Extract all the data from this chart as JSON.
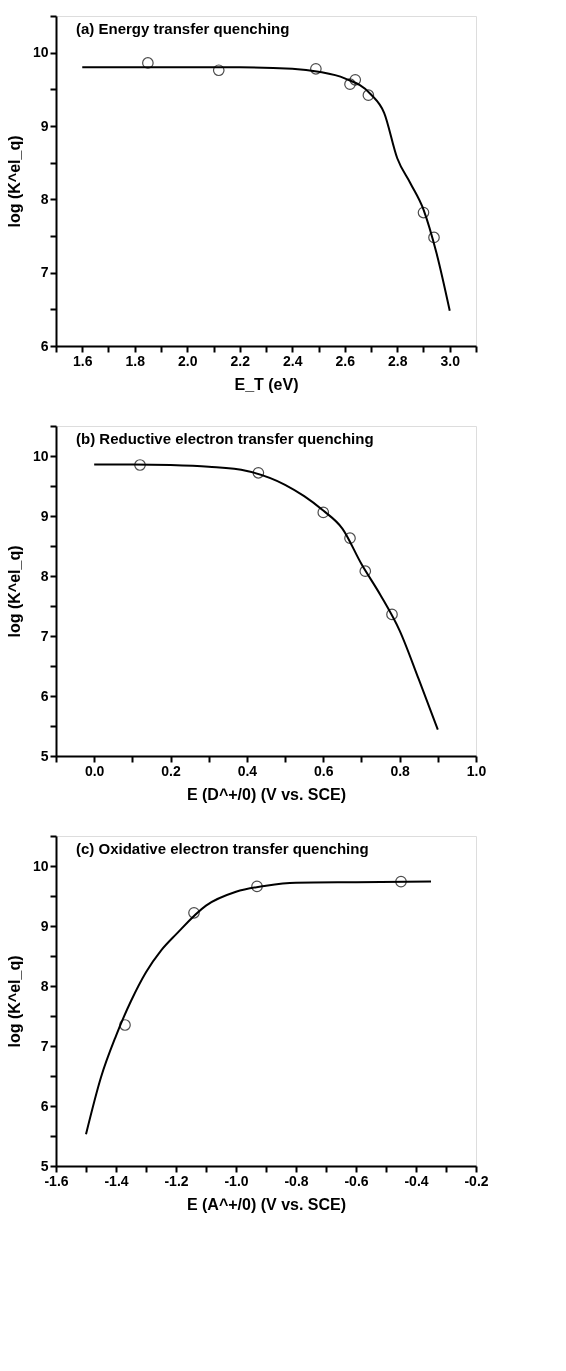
{
  "chart_data": [
    {
      "type": "scatter",
      "title": "(a) Energy transfer quenching",
      "xlabel": "E_T (eV)",
      "ylabel": "log (K^el_q)",
      "xlim": [
        1.5,
        3.1
      ],
      "ylim": [
        6,
        10.5
      ],
      "xticks": [
        {
          "value": 1.5,
          "label": null
        },
        1.6,
        {
          "value": 1.7,
          "label": null
        },
        1.8,
        {
          "value": 1.9,
          "label": null
        },
        {
          "value": 2,
          "label": "2.0"
        },
        {
          "value": 2.1,
          "label": null
        },
        2.2,
        {
          "value": 2.3,
          "label": null
        },
        2.4,
        {
          "value": 2.5,
          "label": null
        },
        2.6,
        {
          "value": 2.7,
          "label": null
        },
        2.8,
        {
          "value": 2.9,
          "label": null
        },
        {
          "value": 3,
          "label": "3.0"
        },
        {
          "value": 3.1,
          "label": null
        }
      ],
      "yticks": [
        6,
        {
          "value": 6.5,
          "label": null
        },
        7,
        {
          "value": 7.5,
          "label": null
        },
        8,
        {
          "value": 8.5,
          "label": null
        },
        9,
        {
          "value": 9.5,
          "label": null
        },
        10,
        {
          "value": 10.5,
          "label": null
        }
      ],
      "series": [
        {
          "marker": "circle",
          "color": "#000000",
          "x": [
            1.85,
            2.12,
            2.49,
            2.62,
            2.64,
            2.69,
            2.9,
            2.94
          ],
          "values": [
            9.86,
            9.76,
            9.78,
            9.57,
            9.63,
            9.42,
            7.82,
            7.48
          ]
        },
        {
          "type": "line",
          "color": "#000000",
          "x": [
            1.6,
            1.8,
            2.0,
            2.2,
            2.4,
            2.5,
            2.6,
            2.7,
            2.75,
            2.8,
            2.85,
            2.9,
            2.95,
            3.0
          ],
          "values": [
            9.8,
            9.8,
            9.8,
            9.8,
            9.78,
            9.74,
            9.65,
            9.43,
            9.18,
            8.56,
            8.22,
            7.86,
            7.26,
            6.48
          ]
        }
      ]
    },
    {
      "type": "scatter",
      "title": "(b) Reductive electron transfer quenching",
      "xlabel": "E (D^+/0) (V vs. SCE)",
      "ylabel": "log (K^el_q)",
      "xlim": [
        -0.1,
        1.0
      ],
      "ylim": [
        5,
        10.5
      ],
      "xticks": [
        {
          "value": -0.1,
          "label": null
        },
        {
          "value": 0,
          "label": "0.0"
        },
        {
          "value": 0.1,
          "label": null
        },
        0.2,
        {
          "value": 0.3,
          "label": null
        },
        0.4,
        {
          "value": 0.5,
          "label": null
        },
        0.6,
        {
          "value": 0.7,
          "label": null
        },
        0.8,
        {
          "value": 0.9,
          "label": null
        },
        {
          "value": 1,
          "label": "1.0"
        }
      ],
      "yticks": [
        5,
        {
          "value": 5.5,
          "label": null
        },
        6,
        {
          "value": 6.5,
          "label": null
        },
        7,
        {
          "value": 7.5,
          "label": null
        },
        8,
        {
          "value": 8.5,
          "label": null
        },
        9,
        {
          "value": 9.5,
          "label": null
        },
        10,
        {
          "value": 10.5,
          "label": null
        }
      ],
      "series": [
        {
          "marker": "circle",
          "color": "#000000",
          "x": [
            0.12,
            0.43,
            0.6,
            0.67,
            0.71,
            0.78
          ],
          "values": [
            9.85,
            9.72,
            9.06,
            8.63,
            8.08,
            7.36
          ]
        },
        {
          "type": "line",
          "color": "#000000",
          "x": [
            0.0,
            0.1,
            0.2,
            0.3,
            0.4,
            0.5,
            0.55,
            0.6,
            0.65,
            0.7,
            0.75,
            0.8,
            0.85,
            0.9
          ],
          "values": [
            9.86,
            9.86,
            9.85,
            9.82,
            9.75,
            9.52,
            9.33,
            9.09,
            8.79,
            8.2,
            7.68,
            7.09,
            6.28,
            5.44
          ]
        }
      ]
    },
    {
      "type": "scatter",
      "title": "(c) Oxidative electron transfer quenching",
      "xlabel": "E (A^+/0) (V vs. SCE)",
      "ylabel": "log (K^el_q)",
      "xlim": [
        -1.6,
        -0.2
      ],
      "ylim": [
        5,
        10.5
      ],
      "xticks": [
        -1.6,
        {
          "value": -1.5,
          "label": null
        },
        -1.4,
        {
          "value": -1.3,
          "label": null
        },
        -1.2,
        {
          "value": -1.1,
          "label": null
        },
        {
          "value": -1,
          "label": "-1.0"
        },
        {
          "value": -0.9,
          "label": null
        },
        -0.8,
        {
          "value": -0.7,
          "label": null
        },
        -0.6,
        {
          "value": -0.5,
          "label": null
        },
        -0.4,
        {
          "value": -0.3,
          "label": null
        },
        -0.2
      ],
      "yticks": [
        5,
        {
          "value": 5.5,
          "label": null
        },
        6,
        {
          "value": 6.5,
          "label": null
        },
        7,
        {
          "value": 7.5,
          "label": null
        },
        8,
        {
          "value": 8.5,
          "label": null
        },
        9,
        {
          "value": 9.5,
          "label": null
        },
        10,
        {
          "value": 10.5,
          "label": null
        }
      ],
      "series": [
        {
          "marker": "circle",
          "color": "#000000",
          "x": [
            -1.37,
            -1.14,
            -0.93,
            -0.45
          ],
          "values": [
            7.35,
            9.22,
            9.66,
            9.74
          ]
        },
        {
          "type": "line",
          "color": "#000000",
          "x": [
            -1.5,
            -1.45,
            -1.4,
            -1.35,
            -1.3,
            -1.25,
            -1.2,
            -1.1,
            -1.0,
            -0.9,
            -0.8,
            -0.6,
            -0.35
          ],
          "values": [
            5.53,
            6.48,
            7.17,
            7.75,
            8.23,
            8.59,
            8.86,
            9.34,
            9.57,
            9.67,
            9.72,
            9.73,
            9.74
          ]
        }
      ]
    }
  ]
}
